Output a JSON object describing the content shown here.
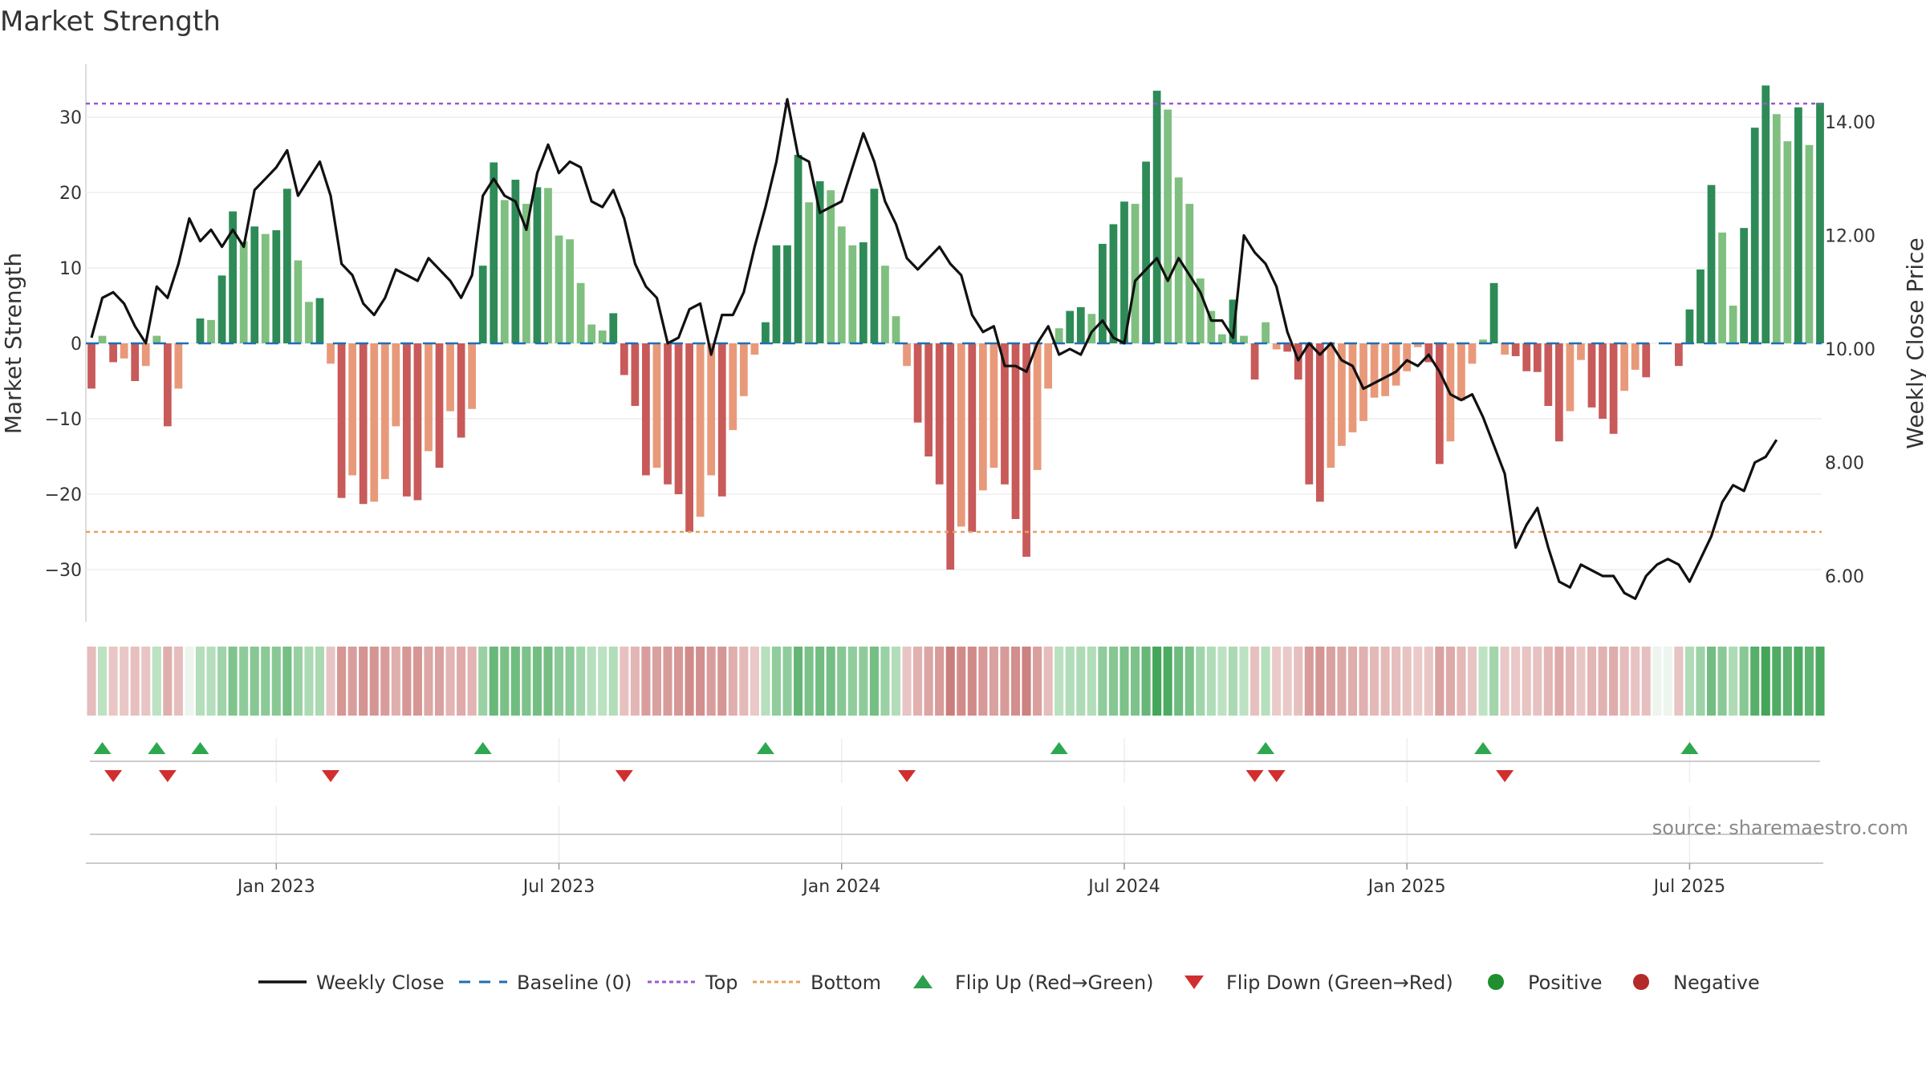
{
  "chart_data": {
    "type": "bar+line",
    "title": "Market Strength",
    "ylabel_left": "Market Strength",
    "ylabel_right": "Weekly Close Price",
    "ylim_left": [
      -37,
      37
    ],
    "ylim_right": [
      5.0,
      15.3
    ],
    "yticks_left": [
      30,
      20,
      10,
      0,
      -10,
      -20,
      -30
    ],
    "yticks_left_labels": [
      "30",
      "20",
      "10",
      "0",
      "−10",
      "−20",
      "−30"
    ],
    "yticks_right": [
      14,
      12,
      10,
      8,
      6
    ],
    "yticks_right_labels": [
      "14.00",
      "12.00",
      "10.00",
      "8.00",
      "6.00"
    ],
    "top_line": 31.8,
    "bottom_line": -25,
    "baseline": 0,
    "x_ticks": [
      {
        "week": 17,
        "label": "Jan 2023"
      },
      {
        "week": 43,
        "label": "Jul 2023"
      },
      {
        "week": 69,
        "label": "Jan 2024"
      },
      {
        "week": 95,
        "label": "Jul 2024"
      },
      {
        "week": 121,
        "label": "Jan 2025"
      },
      {
        "week": 147,
        "label": "Jul 2025"
      }
    ],
    "strength": [
      -6,
      1,
      -2.5,
      -2,
      -5,
      -3,
      1,
      -11,
      -6,
      0,
      3.3,
      3.1,
      9,
      17.5,
      13.5,
      15.5,
      14.5,
      15,
      20.5,
      11,
      5.5,
      6,
      -2.7,
      -20.5,
      -17.5,
      -21.3,
      -21,
      -18,
      -11,
      -20.3,
      -20.8,
      -14.3,
      -16.5,
      -9,
      -12.5,
      -8.7,
      10.3,
      24,
      19,
      21.7,
      18.5,
      20.7,
      20.6,
      14.3,
      13.8,
      8,
      2.5,
      1.7,
      4,
      -4.2,
      -8.3,
      -17.5,
      -16.5,
      -18.7,
      -20,
      -25,
      -23,
      -17.5,
      -20.3,
      -11.5,
      -7,
      -1.5,
      2.8,
      13,
      13,
      25,
      18.7,
      21.5,
      20.3,
      15.5,
      13,
      13.4,
      20.5,
      10.3,
      3.6,
      -3,
      -10.5,
      -15,
      -18.7,
      -30,
      -24.3,
      -25,
      -19.5,
      -16.5,
      -18.7,
      -23.3,
      -28.3,
      -16.8,
      -6,
      2,
      4.3,
      4.8,
      3.9,
      13.2,
      15.8,
      18.8,
      18.5,
      24.1,
      33.5,
      31,
      22,
      18.5,
      8.6,
      4.3,
      1.2,
      5.8,
      1,
      -4.8,
      2.8,
      -0.8,
      -1.1,
      -4.8,
      -18.7,
      -21,
      -16.5,
      -13.6,
      -11.8,
      -10.3,
      -7.2,
      -7,
      -5.6,
      -3.7,
      -0.5,
      -2.5,
      -16,
      -13,
      -7.6,
      -2.7,
      0.5,
      8,
      -1.5,
      -1.7,
      -3.7,
      -3.8,
      -8.3,
      -13,
      -9,
      -2.2,
      -8.5,
      -10,
      -12,
      -6.3,
      -3.5,
      -4.5,
      0,
      0,
      -3,
      4.5,
      9.8,
      21,
      14.7,
      5,
      15.3,
      28.6,
      34.2,
      30.4,
      26.8,
      31.3,
      26.3,
      31.9
    ],
    "close": [
      10.2,
      10.9,
      11,
      10.8,
      10.4,
      10.1,
      11.1,
      10.9,
      11.5,
      12.3,
      11.9,
      12.1,
      11.8,
      12.1,
      11.8,
      12.8,
      13,
      13.2,
      13.5,
      12.7,
      13,
      13.3,
      12.7,
      11.5,
      11.3,
      10.8,
      10.6,
      10.9,
      11.4,
      11.3,
      11.2,
      11.6,
      11.4,
      11.2,
      10.9,
      11.3,
      12.7,
      13,
      12.7,
      12.6,
      12.1,
      13.1,
      13.6,
      13.1,
      13.3,
      13.2,
      12.6,
      12.5,
      12.8,
      12.3,
      11.5,
      11.1,
      10.9,
      10.1,
      10.2,
      10.7,
      10.8,
      9.9,
      10.6,
      10.6,
      11,
      11.8,
      12.5,
      13.3,
      14.4,
      13.4,
      13.3,
      12.4,
      12.5,
      12.6,
      13.2,
      13.8,
      13.3,
      12.6,
      12.2,
      11.6,
      11.4,
      11.6,
      11.8,
      11.5,
      11.3,
      10.6,
      10.3,
      10.4,
      9.7,
      9.7,
      9.6,
      10.1,
      10.4,
      9.9,
      10,
      9.9,
      10.3,
      10.5,
      10.2,
      10.1,
      11.2,
      11.4,
      11.6,
      11.2,
      11.6,
      11.3,
      11,
      10.5,
      10.5,
      10.2,
      12,
      11.7,
      11.5,
      11.1,
      10.3,
      9.8,
      10.1,
      9.9,
      10.1,
      9.8,
      9.7,
      9.3,
      9.4,
      9.5,
      9.6,
      9.8,
      9.7,
      9.9,
      9.6,
      9.2,
      9.1,
      9.2,
      8.8,
      8.3,
      7.8,
      6.5,
      6.9,
      7.2,
      6.5,
      5.9,
      5.8,
      6.2,
      6.1,
      6,
      6,
      5.7,
      5.6,
      6,
      6.2,
      6.3,
      6.2,
      5.9,
      6.3,
      6.7,
      7.3,
      7.6,
      7.5,
      8,
      8.1,
      8.4
    ]
  },
  "legend": [
    {
      "label": "Weekly Close",
      "icon": "solid-line",
      "color": "#111111"
    },
    {
      "label": "Baseline (0)",
      "icon": "dashed-line",
      "color": "#1f6fb3"
    },
    {
      "label": "Top",
      "icon": "dotted-line",
      "color": "#9b59d0"
    },
    {
      "label": "Bottom",
      "icon": "dotted-line",
      "color": "#e8a060"
    },
    {
      "label": "Flip Up (Red→Green)",
      "icon": "up-triangle",
      "color": "#2e9e4f"
    },
    {
      "label": "Flip Down (Green→Red)",
      "icon": "down-triangle",
      "color": "#d12f2f"
    },
    {
      "label": "Positive",
      "icon": "circle",
      "color": "#1f8f2f"
    },
    {
      "label": "Negative",
      "icon": "circle",
      "color": "#b22a2a"
    }
  ],
  "source": "source: sharemaestro.com",
  "colors": {
    "strong_green": "#2e8b57",
    "light_green": "#7fbf7f",
    "strong_red": "#c85a5a",
    "light_red": "#e8997a",
    "top_line": "#9b59d0",
    "bottom_line": "#e8a060",
    "baseline": "#1f6fb3",
    "flip_up": "#2ea84f",
    "flip_down": "#d12f2f"
  }
}
